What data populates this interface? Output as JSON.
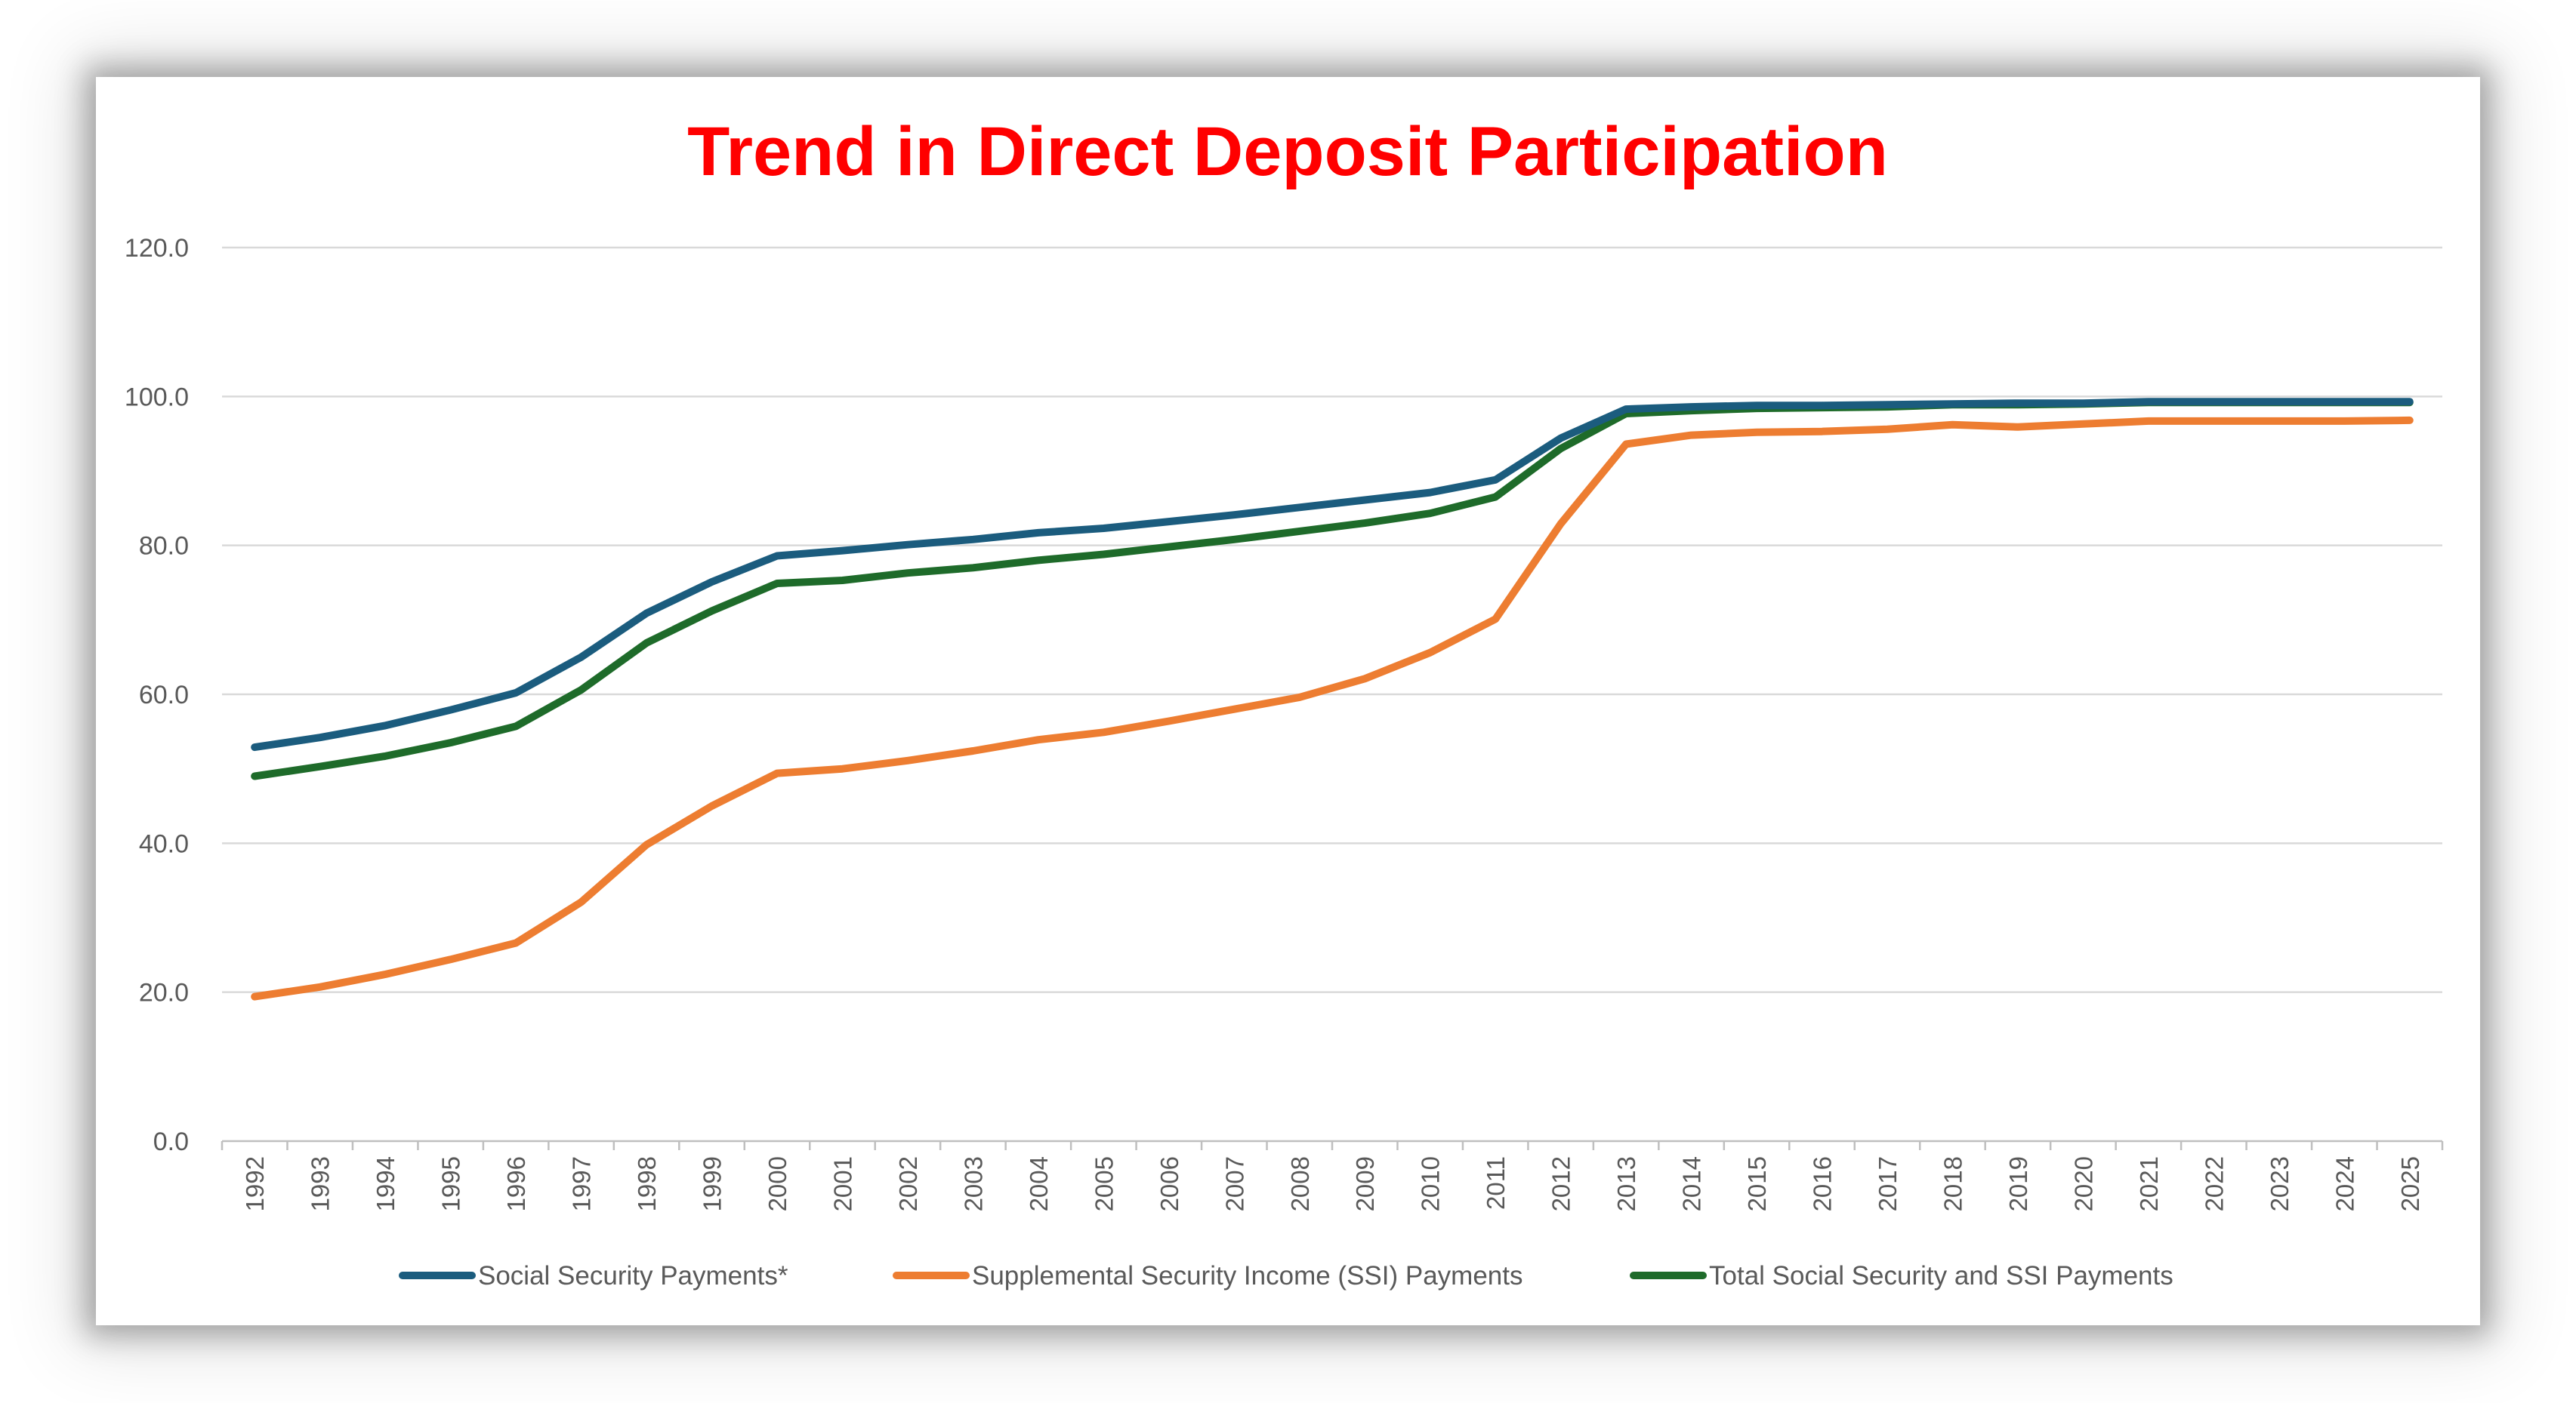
{
  "chart_data": {
    "type": "line",
    "title": "Trend in Direct Deposit Participation",
    "xlabel": "",
    "ylabel": "",
    "ylim": [
      0,
      120
    ],
    "yticks": [
      "0.0",
      "20.0",
      "40.0",
      "60.0",
      "80.0",
      "100.0",
      "120.0"
    ],
    "grid": true,
    "legend_position": "bottom",
    "x": [
      "1992",
      "1993",
      "1994",
      "1995",
      "1996",
      "1997",
      "1998",
      "1999",
      "2000",
      "2001",
      "2002",
      "2003",
      "2004",
      "2005",
      "2006",
      "2007",
      "2008",
      "2009",
      "2010",
      "2011",
      "2012",
      "2013",
      "2014",
      "2015",
      "2016",
      "2017",
      "2018",
      "2019",
      "2020",
      "2021",
      "2022",
      "2023",
      "2024",
      "2025"
    ],
    "series": [
      {
        "name": "Social Security Payments*",
        "color": "#1b5c7e",
        "values": [
          52.9,
          54.2,
          55.8,
          57.9,
          60.2,
          65.0,
          70.9,
          75.1,
          78.6,
          79.3,
          80.1,
          80.8,
          81.7,
          82.3,
          83.2,
          84.1,
          85.1,
          86.1,
          87.1,
          88.8,
          94.4,
          98.3,
          98.6,
          98.8,
          98.8,
          98.9,
          99.0,
          99.1,
          99.1,
          99.3,
          99.3,
          99.3,
          99.3,
          99.3
        ]
      },
      {
        "name": "Supplemental Security Income (SSI) Payments",
        "color": "#ed7d31",
        "values": [
          19.4,
          20.7,
          22.4,
          24.4,
          26.6,
          32.1,
          39.8,
          45.0,
          49.4,
          50.0,
          51.1,
          52.4,
          53.9,
          54.9,
          56.4,
          58.0,
          59.6,
          62.1,
          65.6,
          70.1,
          82.9,
          93.6,
          94.8,
          95.2,
          95.3,
          95.6,
          96.2,
          95.9,
          96.3,
          96.7,
          96.7,
          96.7,
          96.7,
          96.8
        ]
      },
      {
        "name": "Total Social Security and SSI Payments",
        "color": "#1e6b2a",
        "values": [
          49.0,
          50.3,
          51.7,
          53.5,
          55.7,
          60.6,
          66.9,
          71.2,
          74.9,
          75.3,
          76.3,
          77.0,
          78.0,
          78.8,
          79.8,
          80.8,
          81.9,
          83.0,
          84.3,
          86.5,
          93.0,
          97.7,
          98.1,
          98.4,
          98.5,
          98.6,
          98.9,
          98.9,
          99.0,
          99.2,
          99.2,
          99.2,
          99.2,
          99.2
        ]
      }
    ]
  }
}
